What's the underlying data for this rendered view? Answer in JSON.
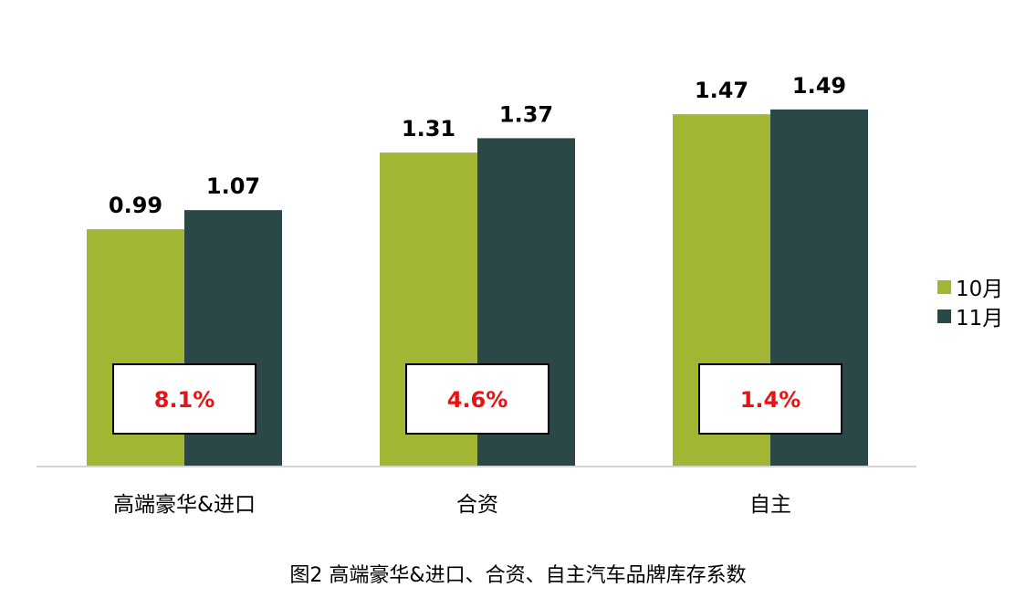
{
  "chart_data": {
    "type": "bar",
    "categories": [
      "高端豪华&进口",
      "合资",
      "自主"
    ],
    "series": [
      {
        "name": "10月",
        "color": "#a1b733",
        "values": [
          0.99,
          1.31,
          1.47
        ]
      },
      {
        "name": "11月",
        "color": "#2b4848",
        "values": [
          1.07,
          1.37,
          1.49
        ]
      }
    ],
    "value_labels": [
      [
        "0.99",
        "1.31",
        "1.47"
      ],
      [
        "1.07",
        "1.37",
        "1.49"
      ]
    ],
    "change_labels": [
      "8.1%",
      "4.6%",
      "1.4%"
    ],
    "change_label_color": "#ee1111",
    "ylim": [
      0,
      1.5
    ],
    "grid": false,
    "legend_position": "right",
    "caption": "图2 高端豪华&进口、合资、自主汽车品牌库存系数"
  }
}
